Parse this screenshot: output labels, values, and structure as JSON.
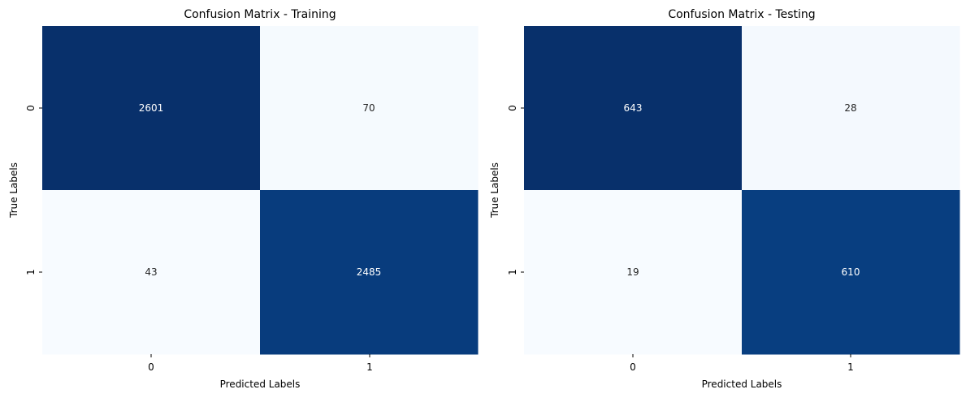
{
  "chart_data": [
    {
      "type": "heatmap",
      "title": "Confusion Matrix - Training",
      "xlabel": "Predicted Labels",
      "ylabel": "True Labels",
      "x_categories": [
        "0",
        "1"
      ],
      "y_categories": [
        "0",
        "1"
      ],
      "values": [
        [
          2601,
          70
        ],
        [
          43,
          2485
        ]
      ],
      "colormap": "Blues",
      "colorbar": false,
      "annot": true
    },
    {
      "type": "heatmap",
      "title": "Confusion Matrix - Testing",
      "xlabel": "Predicted Labels",
      "ylabel": "True Labels",
      "x_categories": [
        "0",
        "1"
      ],
      "y_categories": [
        "0",
        "1"
      ],
      "values": [
        [
          643,
          28
        ],
        [
          19,
          610
        ]
      ],
      "colormap": "Blues",
      "colorbar": false,
      "annot": true
    }
  ],
  "colors": {
    "dark": "#08306b",
    "light": "#f7fbff",
    "text_on_dark": "#ffffff",
    "text_on_light": "#262626"
  }
}
